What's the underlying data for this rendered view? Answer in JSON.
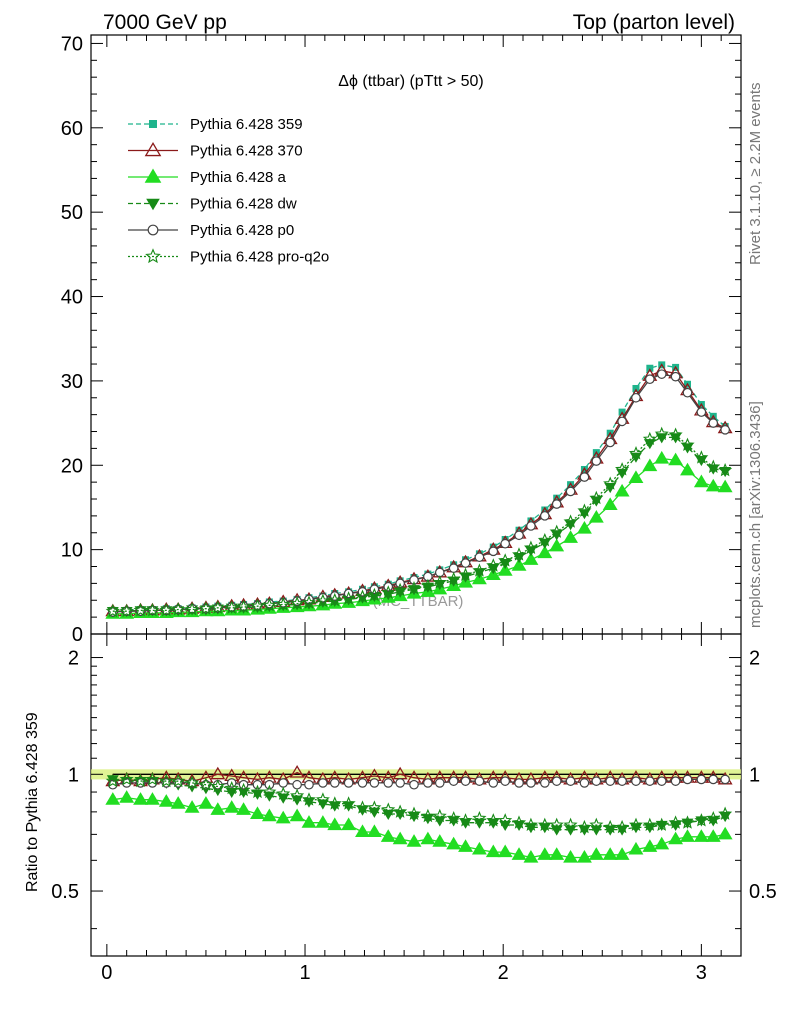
{
  "header": {
    "left": "7000 GeV pp",
    "right": "Top (parton level)"
  },
  "side_labels": {
    "rivet": "Rivet 3.1.10, ≥ 2.2M events",
    "mcplots": "mcplots.cern.ch [arXiv:1306.3436]"
  },
  "watermark": "(MC_TTBAR)",
  "chart_data": [
    {
      "type": "line",
      "title": "Δϕ (ttbar) (pTtt > 50)",
      "xlim": [
        -0.08,
        3.2
      ],
      "ylim": [
        0,
        71
      ],
      "x": [
        0.03,
        0.1,
        0.17,
        0.23,
        0.3,
        0.36,
        0.43,
        0.5,
        0.56,
        0.63,
        0.69,
        0.76,
        0.82,
        0.89,
        0.96,
        1.02,
        1.09,
        1.15,
        1.22,
        1.29,
        1.35,
        1.42,
        1.48,
        1.55,
        1.62,
        1.68,
        1.75,
        1.81,
        1.88,
        1.95,
        2.01,
        2.08,
        2.14,
        2.21,
        2.27,
        2.34,
        2.41,
        2.47,
        2.54,
        2.6,
        2.67,
        2.74,
        2.8,
        2.87,
        2.93,
        3.0,
        3.06,
        3.12
      ],
      "yticks": [
        0,
        10,
        20,
        30,
        40,
        50,
        60,
        70
      ],
      "series": [
        {
          "name": "Pythia 6.428 359",
          "color": "#1fb48c",
          "marker": "square",
          "dash": "dashed",
          "values": [
            2.8,
            2.8,
            2.9,
            2.9,
            3.0,
            3.0,
            3.1,
            3.2,
            3.3,
            3.4,
            3.5,
            3.6,
            3.8,
            3.9,
            4.1,
            4.3,
            4.5,
            4.8,
            5.0,
            5.3,
            5.6,
            5.9,
            6.3,
            6.7,
            7.1,
            7.6,
            8.2,
            8.8,
            9.5,
            10.3,
            11.2,
            12.3,
            13.4,
            14.7,
            16.1,
            17.7,
            19.5,
            21.5,
            23.8,
            26.3,
            29.1,
            31.5,
            31.9,
            31.6,
            29.6,
            27.2,
            25.8,
            24.6
          ]
        },
        {
          "name": "Pythia 6.428 370",
          "color": "#8b1a1a",
          "marker": "triangle-open",
          "dash": "solid",
          "values": [
            2.7,
            2.7,
            2.8,
            2.8,
            2.9,
            2.9,
            3.0,
            3.1,
            3.2,
            3.3,
            3.4,
            3.5,
            3.6,
            3.8,
            4.0,
            4.1,
            4.4,
            4.6,
            4.8,
            5.1,
            5.4,
            5.7,
            6.1,
            6.5,
            6.8,
            7.3,
            7.9,
            8.5,
            9.2,
            10.0,
            10.8,
            11.9,
            13.0,
            14.2,
            15.6,
            17.1,
            18.9,
            20.8,
            23.1,
            25.5,
            28.2,
            30.6,
            31.2,
            30.9,
            28.9,
            26.5,
            25.1,
            24.4
          ]
        },
        {
          "name": "Pythia 6.428 a",
          "color": "#22dd22",
          "marker": "triangle",
          "dash": "solid",
          "values": [
            2.4,
            2.4,
            2.5,
            2.5,
            2.5,
            2.6,
            2.6,
            2.7,
            2.7,
            2.8,
            2.8,
            2.9,
            3.0,
            3.1,
            3.2,
            3.3,
            3.4,
            3.6,
            3.7,
            3.9,
            4.1,
            4.3,
            4.5,
            4.8,
            5.0,
            5.3,
            5.7,
            6.1,
            6.5,
            7.0,
            7.5,
            8.1,
            8.8,
            9.6,
            10.4,
            11.4,
            12.5,
            13.8,
            15.3,
            16.9,
            18.5,
            19.9,
            20.8,
            20.6,
            19.4,
            18.0,
            17.5,
            17.4
          ]
        },
        {
          "name": "Pythia 6.428 dw",
          "color": "#178a17",
          "marker": "triangle-down",
          "dash": "dashed",
          "values": [
            2.7,
            2.7,
            2.8,
            2.8,
            2.8,
            2.8,
            2.9,
            2.9,
            3.0,
            3.1,
            3.1,
            3.2,
            3.3,
            3.4,
            3.5,
            3.6,
            3.8,
            3.9,
            4.1,
            4.3,
            4.5,
            4.7,
            5.0,
            5.3,
            5.6,
            5.9,
            6.3,
            6.8,
            7.3,
            7.8,
            8.4,
            9.1,
            9.9,
            10.8,
            11.8,
            13.0,
            14.3,
            15.8,
            17.4,
            19.1,
            21.0,
            22.6,
            23.3,
            23.3,
            22.1,
            20.6,
            19.6,
            19.3
          ]
        },
        {
          "name": "Pythia 6.428 p0",
          "color": "#444444",
          "marker": "circle-open",
          "dash": "solid",
          "values": [
            2.6,
            2.7,
            2.7,
            2.8,
            2.8,
            2.9,
            3.0,
            3.0,
            3.1,
            3.2,
            3.3,
            3.4,
            3.6,
            3.7,
            3.9,
            4.1,
            4.3,
            4.5,
            4.8,
            5.0,
            5.3,
            5.6,
            6.0,
            6.4,
            6.8,
            7.3,
            7.8,
            8.4,
            9.1,
            9.8,
            10.7,
            11.7,
            12.8,
            14.0,
            15.4,
            16.9,
            18.6,
            20.5,
            22.7,
            25.2,
            28.0,
            30.2,
            30.8,
            30.5,
            28.6,
            26.3,
            25.0,
            24.2
          ]
        },
        {
          "name": "Pythia 6.428 pro-q2o",
          "color": "#178a17",
          "marker": "star-open",
          "dash": "dotted",
          "values": [
            2.7,
            2.7,
            2.8,
            2.8,
            2.8,
            2.9,
            2.9,
            3.0,
            3.1,
            3.1,
            3.2,
            3.3,
            3.4,
            3.5,
            3.6,
            3.7,
            3.9,
            4.0,
            4.2,
            4.4,
            4.6,
            4.9,
            5.2,
            5.4,
            5.7,
            6.1,
            6.5,
            7.0,
            7.5,
            8.1,
            8.7,
            9.4,
            10.2,
            11.1,
            12.1,
            13.3,
            14.6,
            16.1,
            17.8,
            19.5,
            21.4,
            23.1,
            23.7,
            23.6,
            22.4,
            20.9,
            19.8,
            19.4
          ]
        }
      ]
    },
    {
      "type": "line",
      "ylabel": "Ratio to Pythia 6.428 359",
      "xlim": [
        -0.08,
        3.2
      ],
      "ylim": [
        0.34,
        2.3
      ],
      "log_y": true,
      "yticks": [
        "0.5",
        "1",
        "2"
      ],
      "xticks": [
        "0",
        "1",
        "2",
        "3"
      ],
      "reference_band": [
        0.97,
        1.03
      ],
      "series": [
        {
          "name": "Pythia 6.428 359",
          "color": "#1fb48c",
          "values": [
            1,
            1,
            1,
            1,
            1,
            1,
            1,
            1,
            1,
            1,
            1,
            1,
            1,
            1,
            1,
            1,
            1,
            1,
            1,
            1,
            1,
            1,
            1,
            1,
            1,
            1,
            1,
            1,
            1,
            1,
            1,
            1,
            1,
            1,
            1,
            1,
            1,
            1,
            1,
            1,
            1,
            1,
            1,
            1,
            1,
            1,
            1,
            1
          ]
        },
        {
          "name": "Pythia 6.428 370",
          "color": "#8b1a1a",
          "values": [
            0.96,
            0.97,
            0.96,
            0.97,
            0.98,
            0.97,
            0.96,
            0.98,
            1.0,
            0.99,
            0.98,
            0.97,
            0.98,
            0.97,
            1.01,
            0.98,
            0.97,
            0.98,
            0.97,
            0.98,
            0.99,
            0.98,
            1.0,
            0.98,
            0.97,
            0.98,
            0.98,
            0.98,
            0.97,
            0.98,
            0.98,
            0.97,
            0.97,
            0.98,
            0.98,
            0.97,
            0.98,
            0.97,
            0.98,
            0.97,
            0.98,
            0.97,
            0.98,
            0.98,
            0.98,
            0.98,
            0.98,
            0.97
          ]
        },
        {
          "name": "Pythia 6.428 a",
          "color": "#22dd22",
          "values": [
            0.86,
            0.87,
            0.86,
            0.86,
            0.85,
            0.84,
            0.82,
            0.84,
            0.81,
            0.82,
            0.81,
            0.79,
            0.78,
            0.77,
            0.78,
            0.75,
            0.75,
            0.74,
            0.74,
            0.71,
            0.71,
            0.69,
            0.68,
            0.67,
            0.68,
            0.67,
            0.66,
            0.65,
            0.64,
            0.63,
            0.63,
            0.62,
            0.61,
            0.62,
            0.62,
            0.61,
            0.61,
            0.62,
            0.62,
            0.62,
            0.64,
            0.65,
            0.66,
            0.68,
            0.69,
            0.69,
            0.69,
            0.7
          ]
        },
        {
          "name": "Pythia 6.428 dw",
          "color": "#178a17",
          "values": [
            0.97,
            0.96,
            0.96,
            0.96,
            0.95,
            0.94,
            0.93,
            0.92,
            0.91,
            0.9,
            0.9,
            0.89,
            0.88,
            0.87,
            0.86,
            0.85,
            0.84,
            0.83,
            0.83,
            0.81,
            0.8,
            0.79,
            0.79,
            0.78,
            0.77,
            0.76,
            0.76,
            0.75,
            0.75,
            0.75,
            0.74,
            0.74,
            0.73,
            0.73,
            0.72,
            0.72,
            0.72,
            0.72,
            0.72,
            0.72,
            0.73,
            0.73,
            0.74,
            0.74,
            0.75,
            0.76,
            0.76,
            0.78
          ]
        },
        {
          "name": "Pythia 6.428 p0",
          "color": "#444444",
          "values": [
            0.94,
            0.95,
            0.95,
            0.95,
            0.95,
            0.95,
            0.95,
            0.94,
            0.94,
            0.95,
            0.94,
            0.94,
            0.94,
            0.95,
            0.94,
            0.94,
            0.95,
            0.95,
            0.95,
            0.95,
            0.95,
            0.95,
            0.95,
            0.94,
            0.95,
            0.95,
            0.96,
            0.96,
            0.96,
            0.95,
            0.96,
            0.95,
            0.95,
            0.95,
            0.96,
            0.96,
            0.95,
            0.96,
            0.96,
            0.96,
            0.96,
            0.96,
            0.96,
            0.96,
            0.97,
            0.97,
            0.97,
            0.97
          ]
        },
        {
          "name": "Pythia 6.428 pro-q2o",
          "color": "#178a17",
          "values": [
            0.96,
            0.97,
            0.96,
            0.97,
            0.96,
            0.96,
            0.95,
            0.94,
            0.93,
            0.92,
            0.91,
            0.9,
            0.9,
            0.89,
            0.88,
            0.86,
            0.86,
            0.84,
            0.84,
            0.82,
            0.82,
            0.81,
            0.8,
            0.79,
            0.78,
            0.78,
            0.77,
            0.76,
            0.77,
            0.76,
            0.76,
            0.75,
            0.74,
            0.74,
            0.74,
            0.74,
            0.73,
            0.74,
            0.73,
            0.73,
            0.74,
            0.74,
            0.74,
            0.75,
            0.75,
            0.76,
            0.77,
            0.79
          ]
        }
      ]
    }
  ]
}
